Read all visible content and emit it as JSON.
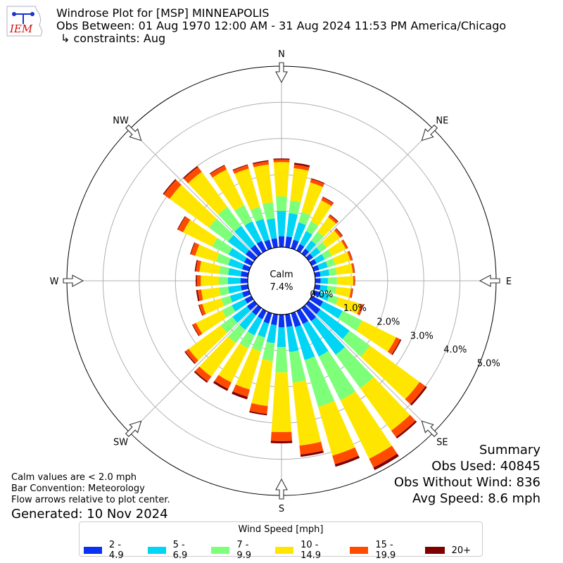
{
  "title": {
    "line1": "Windrose Plot for [MSP] MINNEAPOLIS",
    "line2": "Obs Between: 01 Aug 1970 12:00 AM - 31 Aug 2024 11:53 PM America/Chicago",
    "line3": "↳ constraints: Aug"
  },
  "logo": {
    "text": "IEM"
  },
  "summary": {
    "heading": "Summary",
    "obs_used": "Obs Used: 40845",
    "obs_without_wind": "Obs Without Wind: 836",
    "avg_speed": "Avg Speed: 8.6 mph"
  },
  "notes": {
    "line1": "Calm values are < 2.0 mph",
    "line2": "Bar Convention: Meteorology",
    "line3": "Flow arrows relative to plot center.",
    "generated": "Generated: 10 Nov 2024"
  },
  "chart_data": {
    "type": "windrose",
    "direction_labels": [
      "N",
      "NE",
      "E",
      "SE",
      "S",
      "SW",
      "W",
      "NW"
    ],
    "radial_labels": [
      "0.0%",
      "1.0%",
      "2.0%",
      "3.0%",
      "4.0%",
      "5.0%"
    ],
    "radial_range": [
      0,
      5
    ],
    "calm_label": "Calm",
    "calm_value": "7.4%",
    "legend_title": "Wind Speed [mph]",
    "speed_bins": [
      {
        "label": "2 - 4.9",
        "color": "#0a32f0"
      },
      {
        "label": "5 - 6.9",
        "color": "#00d5f5"
      },
      {
        "label": "7 - 9.9",
        "color": "#7dff7a"
      },
      {
        "label": "10 - 14.9",
        "color": "#ffe600"
      },
      {
        "label": "15 - 19.9",
        "color": "#ff4b00"
      },
      {
        "label": "20+",
        "color": "#7f0000"
      }
    ],
    "directions_deg": [
      0,
      10,
      20,
      30,
      40,
      50,
      60,
      70,
      80,
      90,
      100,
      110,
      120,
      130,
      140,
      150,
      160,
      170,
      180,
      190,
      200,
      210,
      220,
      230,
      240,
      250,
      260,
      270,
      280,
      290,
      300,
      310,
      320,
      330,
      340,
      350
    ],
    "cumulative_percent": [
      [
        0.3,
        1.0,
        1.4,
        2.35,
        2.42,
        2.45
      ],
      [
        0.3,
        0.95,
        1.3,
        2.2,
        2.3,
        2.35
      ],
      [
        0.25,
        0.75,
        1.05,
        1.9,
        2.0,
        2.02
      ],
      [
        0.2,
        0.6,
        0.9,
        1.55,
        1.64,
        1.66
      ],
      [
        0.17,
        0.45,
        0.75,
        1.25,
        1.32,
        1.34
      ],
      [
        0.15,
        0.4,
        0.62,
        1.08,
        1.15,
        1.17
      ],
      [
        0.15,
        0.4,
        0.62,
        1.05,
        1.11,
        1.12
      ],
      [
        0.15,
        0.4,
        0.62,
        1.05,
        1.11,
        1.12
      ],
      [
        0.15,
        0.4,
        0.6,
        1.05,
        1.1,
        1.11
      ],
      [
        0.15,
        0.35,
        0.6,
        1.05,
        1.09,
        1.1
      ],
      [
        0.15,
        0.35,
        0.6,
        1.0,
        1.05,
        1.06
      ],
      [
        0.18,
        0.45,
        0.7,
        1.35,
        1.42,
        1.43
      ],
      [
        0.35,
        0.95,
        1.55,
        2.6,
        2.73,
        2.76
      ],
      [
        0.4,
        1.4,
        2.1,
        3.8,
        4.0,
        4.05
      ],
      [
        0.45,
        1.6,
        2.75,
        4.2,
        4.42,
        4.47
      ],
      [
        0.4,
        1.4,
        2.75,
        4.55,
        4.82,
        4.9
      ],
      [
        0.4,
        1.35,
        2.7,
        4.1,
        4.35,
        4.42
      ],
      [
        0.35,
        1.05,
        1.9,
        3.65,
        3.9,
        3.96
      ],
      [
        0.35,
        0.9,
        1.6,
        3.25,
        3.5,
        3.56
      ],
      [
        0.3,
        0.8,
        1.3,
        2.55,
        2.77,
        2.81
      ],
      [
        0.3,
        0.7,
        1.1,
        2.2,
        2.41,
        2.48
      ],
      [
        0.25,
        0.75,
        1.15,
        2.2,
        2.4,
        2.46
      ],
      [
        0.25,
        0.75,
        1.2,
        2.35,
        2.52,
        2.56
      ],
      [
        0.25,
        0.75,
        1.15,
        2.25,
        2.36,
        2.39
      ],
      [
        0.2,
        0.6,
        0.9,
        1.7,
        1.8,
        1.82
      ],
      [
        0.2,
        0.55,
        0.8,
        1.35,
        1.44,
        1.46
      ],
      [
        0.2,
        0.55,
        0.8,
        1.3,
        1.4,
        1.44
      ],
      [
        0.2,
        0.55,
        0.8,
        1.3,
        1.41,
        1.44
      ],
      [
        0.2,
        0.55,
        0.8,
        1.35,
        1.45,
        1.48
      ],
      [
        0.2,
        0.6,
        0.95,
        1.55,
        1.68,
        1.7
      ],
      [
        0.22,
        0.7,
        1.2,
        2.1,
        2.26,
        2.28
      ],
      [
        0.3,
        0.9,
        1.55,
        2.9,
        3.1,
        3.13
      ],
      [
        0.3,
        0.95,
        1.6,
        2.8,
        2.97,
        3.0
      ],
      [
        0.3,
        0.9,
        1.4,
        2.5,
        2.62,
        2.64
      ],
      [
        0.25,
        0.85,
        1.2,
        2.3,
        2.4,
        2.42
      ],
      [
        0.25,
        0.8,
        1.25,
        2.3,
        2.39,
        2.42
      ]
    ]
  }
}
